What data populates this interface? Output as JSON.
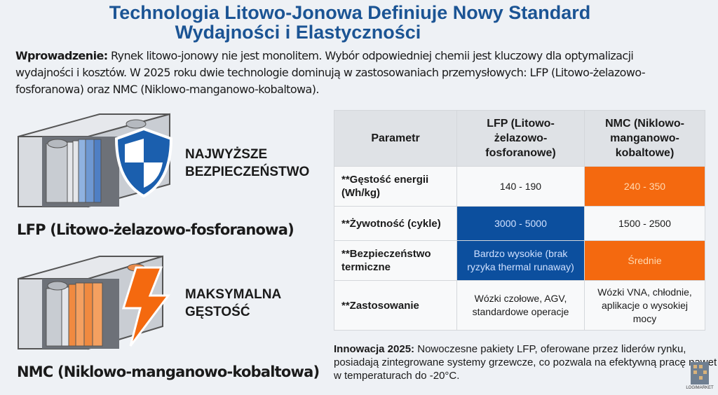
{
  "title": {
    "line1": "Technologia Litowo-Jonowa Definiuje Nowy Standard",
    "line2": "Wydajności i Elastyczności"
  },
  "intro": {
    "label": "Wprowadzenie:",
    "text": " Rynek litowo-jonowy nie jest monolitem. Wybór odpowiedniej chemii jest kluczowy dla optymalizacji wydajności i kosztów. W 2025 roku dwie technologie dominują w zastosowaniach przemysłowych: LFP (Litowo-żelazowo-fosforanowa) oraz NMC (Niklowo-manganowo-kobaltowa)."
  },
  "lfp": {
    "feature_line1": "NAJWYŻSZE",
    "feature_line2": "BEZPIECZEŃSTWO",
    "label": "LFP (Litowo-żelazowo-fosforanowa)",
    "icon": "shield-icon",
    "color": "#1b5fae"
  },
  "nmc": {
    "feature_line1": "MAKSYMALNA",
    "feature_line2": "GĘSTOŚĆ",
    "label": "NMC (Niklowo-manganowo-kobaltowa)",
    "icon": "lightning-icon",
    "color": "#f4690f"
  },
  "table": {
    "headers": [
      "Parametr",
      "LFP (Litowo-żelazowo-fosforanowe)",
      "NMC (Niklowo-manganowo-kobaltowe)"
    ],
    "rows": [
      [
        "**Gęstość energii (Wh/kg)",
        "140 - 190",
        "240 - 350"
      ],
      [
        "**Żywotność (cykle)",
        "3000 - 5000",
        "1500 - 2500"
      ],
      [
        "**Bezpieczeństwo termiczne",
        "Bardzo wysokie (brak ryzyka thermal runaway)",
        "Średnie"
      ],
      [
        "**Zastosowanie",
        "Wózki czołowe, AGV, standardowe operacje",
        "Wózki VNA, chłodnie, aplikacje o wysokiej mocy"
      ]
    ]
  },
  "innovation": {
    "label": "Innowacja 2025:",
    "text": " Nowoczesne pakiety LFP, oferowane przez liderów rynku, posiadają zintegrowane systemy grzewcze, co pozwala na efektywną pracę nawet w temperaturach do -20°C."
  },
  "logo": {
    "text": "LOGIMARKET"
  }
}
